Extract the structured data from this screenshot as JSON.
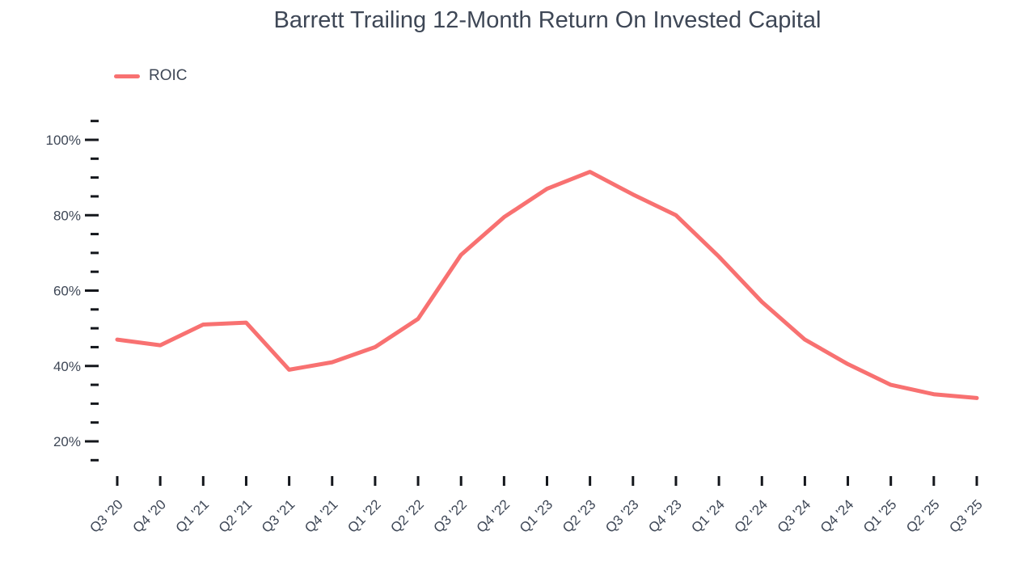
{
  "title": "Barrett Trailing 12-Month Return On Invested Capital",
  "legend": {
    "position": "top-left",
    "items": [
      {
        "label": "ROIC",
        "swatch": "line-swatch",
        "color": "#F87171"
      }
    ]
  },
  "colors": {
    "line": "#F87171",
    "text": "#3E4756",
    "tick": "#14171C",
    "background": "#FFFFFF"
  },
  "chart_data": {
    "type": "line",
    "title": "Barrett Trailing 12-Month Return On Invested Capital",
    "xlabel": "",
    "ylabel": "",
    "grid": false,
    "legend_position": "top-left",
    "categories": [
      "Q3 '20",
      "Q4 '20",
      "Q1 '21",
      "Q2 '21",
      "Q3 '21",
      "Q4 '21",
      "Q1 '22",
      "Q2 '22",
      "Q3 '22",
      "Q4 '22",
      "Q1 '23",
      "Q2 '23",
      "Q3 '23",
      "Q4 '23",
      "Q1 '24",
      "Q2 '24",
      "Q3 '24",
      "Q4 '24",
      "Q1 '25",
      "Q2 '25",
      "Q3 '25"
    ],
    "series": [
      {
        "name": "ROIC",
        "color": "#F87171",
        "unit": "%",
        "values": [
          47,
          45.5,
          51,
          51.5,
          39,
          41,
          45,
          52.5,
          69.5,
          79.5,
          87,
          91.5,
          85.5,
          80,
          69,
          57,
          47,
          40.5,
          35,
          32.5,
          31.5
        ]
      }
    ],
    "y_axis": {
      "unit": "%",
      "min": 15,
      "max": 105,
      "minor_tick_step": 5,
      "major_tick_step": 20,
      "labeled_ticks": [
        20,
        40,
        60,
        80,
        100
      ],
      "tick_label_suffix": "%"
    },
    "x_axis": {
      "tick_count": 21,
      "label_rotation_deg": -45
    }
  }
}
